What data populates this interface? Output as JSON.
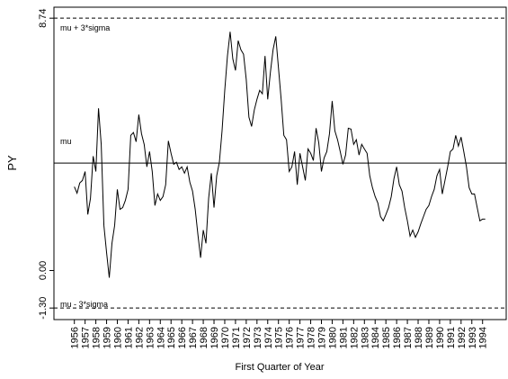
{
  "chart_data": {
    "type": "line",
    "ylabel": "PY",
    "xlabel": "First Quarter of Year",
    "color": "#000000",
    "x": [
      1956,
      1956.25,
      1956.5,
      1956.75,
      1957,
      1957.25,
      1957.5,
      1957.75,
      1958,
      1958.25,
      1958.5,
      1958.75,
      1959,
      1959.25,
      1959.5,
      1959.75,
      1960,
      1960.25,
      1960.5,
      1960.75,
      1961,
      1961.25,
      1961.5,
      1961.75,
      1962,
      1962.25,
      1962.5,
      1962.75,
      1963,
      1963.25,
      1963.5,
      1963.75,
      1964,
      1964.25,
      1964.5,
      1964.75,
      1965,
      1965.25,
      1965.5,
      1965.75,
      1966,
      1966.25,
      1966.5,
      1966.75,
      1967,
      1967.25,
      1967.5,
      1967.75,
      1968,
      1968.25,
      1968.5,
      1968.75,
      1969,
      1969.25,
      1969.5,
      1969.75,
      1970,
      1970.25,
      1970.5,
      1970.75,
      1971,
      1971.25,
      1971.5,
      1971.75,
      1972,
      1972.25,
      1972.5,
      1972.75,
      1973,
      1973.25,
      1973.5,
      1973.75,
      1974,
      1974.25,
      1974.5,
      1974.75,
      1975,
      1975.25,
      1975.5,
      1975.75,
      1976,
      1976.25,
      1976.5,
      1976.75,
      1977,
      1977.25,
      1977.5,
      1977.75,
      1978,
      1978.25,
      1978.5,
      1978.75,
      1979,
      1979.25,
      1979.5,
      1979.75,
      1980,
      1980.25,
      1980.5,
      1980.75,
      1981,
      1981.25,
      1981.5,
      1981.75,
      1982,
      1982.25,
      1982.5,
      1982.75,
      1983,
      1983.25,
      1983.5,
      1983.75,
      1984,
      1984.25,
      1984.5,
      1984.75,
      1985,
      1985.25,
      1985.5,
      1985.75,
      1986,
      1986.25,
      1986.5,
      1986.75,
      1987,
      1987.25,
      1987.5,
      1987.75,
      1988,
      1988.25,
      1988.5,
      1988.75,
      1989,
      1989.25,
      1989.5,
      1989.75,
      1990,
      1990.25,
      1990.5,
      1990.75,
      1991,
      1991.25,
      1991.5,
      1991.75,
      1992,
      1992.25,
      1992.5,
      1992.75,
      1993,
      1993.25,
      1993.5,
      1993.75,
      1994,
      1994.25
    ],
    "values": [
      2.9,
      2.68,
      3.03,
      3.12,
      3.43,
      1.94,
      2.5,
      3.96,
      3.43,
      5.62,
      4.37,
      1.56,
      0.62,
      -0.25,
      0.94,
      1.56,
      2.81,
      2.12,
      2.18,
      2.43,
      2.81,
      4.68,
      4.78,
      4.46,
      5.4,
      4.74,
      4.37,
      3.59,
      4.12,
      3.43,
      2.25,
      2.65,
      2.43,
      2.56,
      2.97,
      4.49,
      4.06,
      3.68,
      3.75,
      3.5,
      3.59,
      3.37,
      3.59,
      3.06,
      2.75,
      2.12,
      1.25,
      0.44,
      1.4,
      0.94,
      2.5,
      3.37,
      2.18,
      3.28,
      3.75,
      4.84,
      6.24,
      7.43,
      8.27,
      7.33,
      6.93,
      7.96,
      7.65,
      7.49,
      6.62,
      5.31,
      4.99,
      5.56,
      5.93,
      6.24,
      6.12,
      7.43,
      5.93,
      6.87,
      7.65,
      8.11,
      7.02,
      5.93,
      4.68,
      4.53,
      3.43,
      3.59,
      4.12,
      2.97,
      4.06,
      3.59,
      3.12,
      4.21,
      4.06,
      3.81,
      4.93,
      4.43,
      3.43,
      3.9,
      4.12,
      4.74,
      5.87,
      4.84,
      4.53,
      4.12,
      3.68,
      4.0,
      4.93,
      4.9,
      4.37,
      4.53,
      4.0,
      4.37,
      4.21,
      4.06,
      3.28,
      2.87,
      2.56,
      2.34,
      1.87,
      1.72,
      1.94,
      2.18,
      2.56,
      3.18,
      3.59,
      2.97,
      2.75,
      2.18,
      1.72,
      1.19,
      1.4,
      1.15,
      1.34,
      1.62,
      1.87,
      2.12,
      2.25,
      2.56,
      2.81,
      3.28,
      3.5,
      2.65,
      3.12,
      3.59,
      4.12,
      4.21,
      4.68,
      4.31,
      4.62,
      4.12,
      3.59,
      2.87,
      2.65,
      2.65,
      2.18,
      1.72,
      1.78,
      1.78
    ],
    "xlim": [
      1954.1,
      1996.2
    ],
    "xticks": [
      1956,
      1957,
      1958,
      1959,
      1960,
      1961,
      1962,
      1963,
      1964,
      1965,
      1966,
      1967,
      1968,
      1969,
      1970,
      1971,
      1972,
      1973,
      1974,
      1975,
      1976,
      1977,
      1978,
      1979,
      1980,
      1981,
      1982,
      1983,
      1984,
      1985,
      1986,
      1987,
      1988,
      1989,
      1990,
      1991,
      1992,
      1993,
      1994
    ],
    "ylim": [
      -1.7,
      9.12
    ],
    "yticks": [
      {
        "value": -1.3,
        "label": "-1.30"
      },
      {
        "value": 0,
        "label": "0.00"
      },
      {
        "value": 8.74,
        "label": "8.74"
      }
    ],
    "reference_lines": [
      {
        "value": 8.74,
        "label": "mu + 3*sigma",
        "style": "dashed"
      },
      {
        "value": 3.72,
        "label": "mu",
        "style": "solid"
      },
      {
        "value": -1.3,
        "label": "mu - 3*sigma",
        "style": "dashed"
      }
    ]
  }
}
